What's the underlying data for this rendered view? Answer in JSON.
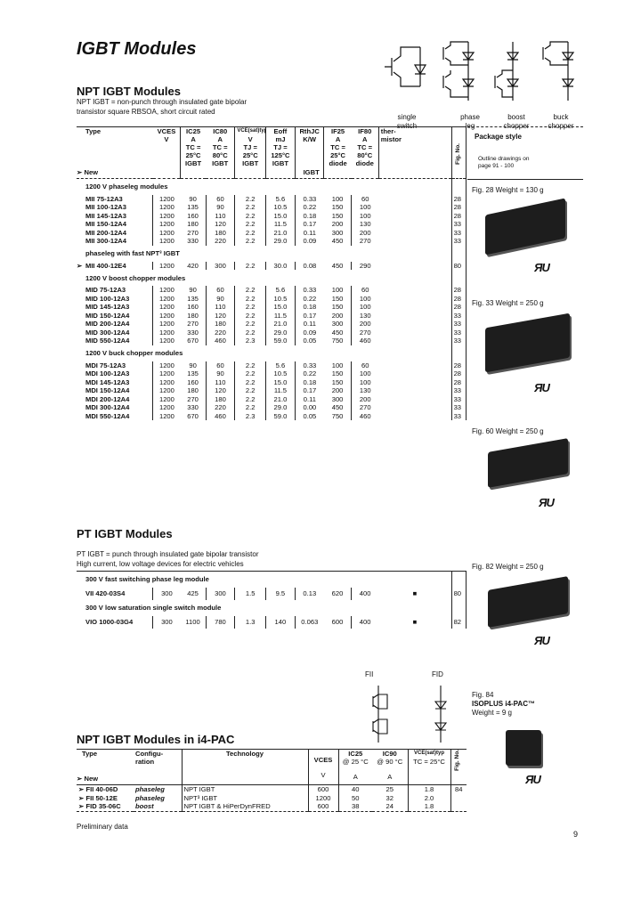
{
  "title": "IGBT Modules",
  "symbols": [
    {
      "label1": "single",
      "label2": "switch"
    },
    {
      "label1": "phase",
      "label2": "leg"
    },
    {
      "label1": "boost",
      "label2": "chopper"
    },
    {
      "label1": "buck",
      "label2": "chopper"
    }
  ],
  "npt": {
    "heading": "NPT IGBT Modules",
    "desc1": "NPT IGBT = non-punch through insulated gate bipolar",
    "desc2": "transistor square RBSOA, short circuit rated",
    "headers": {
      "type": "Type",
      "new": "➢ New",
      "vces": "VCES",
      "vces_u": "V",
      "ic25": "IC25",
      "ic25_u": "A",
      "ic25_c": "TC =",
      "ic25_t": "25°C",
      "ic25_d": "IGBT",
      "ic80": "IC80",
      "ic80_u": "A",
      "ic80_c": "TC =",
      "ic80_t": "80°C",
      "ic80_d": "IGBT",
      "vce": "VCE(sat)typ",
      "vce_u": "V",
      "vce_c": "TJ =",
      "vce_t": "25°C",
      "vce_d": "IGBT",
      "eoff": "Eoff",
      "eoff_u": "mJ",
      "eoff_c": "TJ =",
      "eoff_t": "125°C",
      "eoff_d": "IGBT",
      "rth": "RthJC",
      "rth_u": "K/W",
      "rth_d": "IGBT",
      "if25": "IF25",
      "if25_u": "A",
      "if25_c": "TC =",
      "if25_t": "25°C",
      "if25_d": "diode",
      "if80": "IF80",
      "if80_u": "A",
      "if80_c": "TC =",
      "if80_t": "80°C",
      "if80_d": "diode",
      "therm": "ther-",
      "therm2": "mistor",
      "fig": "Fig. No."
    },
    "sections": [
      {
        "title": "1200 V phaseleg modules",
        "rows": [
          [
            "",
            "MII 75-12A3",
            "1200",
            "90",
            "60",
            "2.2",
            "5.6",
            "0.33",
            "100",
            "60",
            "",
            "28"
          ],
          [
            "",
            "MII 100-12A3",
            "1200",
            "135",
            "90",
            "2.2",
            "10.5",
            "0.22",
            "150",
            "100",
            "",
            "28"
          ],
          [
            "",
            "MII 145-12A3",
            "1200",
            "160",
            "110",
            "2.2",
            "15.0",
            "0.18",
            "150",
            "100",
            "",
            "28"
          ],
          [
            "",
            "MII 150-12A4",
            "1200",
            "180",
            "120",
            "2.2",
            "11.5",
            "0.17",
            "200",
            "130",
            "",
            "33"
          ],
          [
            "",
            "MII 200-12A4",
            "1200",
            "270",
            "180",
            "2.2",
            "21.0",
            "0.11",
            "300",
            "200",
            "",
            "33"
          ],
          [
            "",
            "MII 300-12A4",
            "1200",
            "330",
            "220",
            "2.2",
            "29.0",
            "0.09",
            "450",
            "270",
            "",
            "33"
          ]
        ]
      },
      {
        "title": "phaseleg with fast NPT³ IGBT",
        "rows": [
          [
            "➢",
            "MII 400-12E4",
            "1200",
            "420",
            "300",
            "2.2",
            "30.0",
            "0.08",
            "450",
            "290",
            "",
            "80"
          ]
        ]
      },
      {
        "title": "1200 V boost chopper modules",
        "rows": [
          [
            "",
            "MID 75-12A3",
            "1200",
            "90",
            "60",
            "2.2",
            "5.6",
            "0.33",
            "100",
            "60",
            "",
            "28"
          ],
          [
            "",
            "MID 100-12A3",
            "1200",
            "135",
            "90",
            "2.2",
            "10.5",
            "0.22",
            "150",
            "100",
            "",
            "28"
          ],
          [
            "",
            "MID 145-12A3",
            "1200",
            "160",
            "110",
            "2.2",
            "15.0",
            "0.18",
            "150",
            "100",
            "",
            "28"
          ],
          [
            "",
            "MID 150-12A4",
            "1200",
            "180",
            "120",
            "2.2",
            "11.5",
            "0.17",
            "200",
            "130",
            "",
            "33"
          ],
          [
            "",
            "MID 200-12A4",
            "1200",
            "270",
            "180",
            "2.2",
            "21.0",
            "0.11",
            "300",
            "200",
            "",
            "33"
          ],
          [
            "",
            "MID 300-12A4",
            "1200",
            "330",
            "220",
            "2.2",
            "29.0",
            "0.09",
            "450",
            "270",
            "",
            "33"
          ],
          [
            "",
            "MID 550-12A4",
            "1200",
            "670",
            "460",
            "2.3",
            "59.0",
            "0.05",
            "750",
            "460",
            "",
            "33"
          ]
        ]
      },
      {
        "title": "1200 V buck chopper modules",
        "rows": [
          [
            "",
            "MDI 75-12A3",
            "1200",
            "90",
            "60",
            "2.2",
            "5.6",
            "0.33",
            "100",
            "60",
            "",
            "28"
          ],
          [
            "",
            "MDI 100-12A3",
            "1200",
            "135",
            "90",
            "2.2",
            "10.5",
            "0.22",
            "150",
            "100",
            "",
            "28"
          ],
          [
            "",
            "MDI 145-12A3",
            "1200",
            "160",
            "110",
            "2.2",
            "15.0",
            "0.18",
            "150",
            "100",
            "",
            "28"
          ],
          [
            "",
            "MDI 150-12A4",
            "1200",
            "180",
            "120",
            "2.2",
            "11.5",
            "0.17",
            "200",
            "130",
            "",
            "33"
          ],
          [
            "",
            "MDI 200-12A4",
            "1200",
            "270",
            "180",
            "2.2",
            "21.0",
            "0.11",
            "300",
            "200",
            "",
            "33"
          ],
          [
            "",
            "MDI 300-12A4",
            "1200",
            "330",
            "220",
            "2.2",
            "29.0",
            "0.00",
            "450",
            "270",
            "",
            "33"
          ],
          [
            "",
            "MDI 550-12A4",
            "1200",
            "670",
            "460",
            "2.3",
            "59.0",
            "0.05",
            "750",
            "460",
            "",
            "33"
          ]
        ]
      }
    ]
  },
  "package": {
    "header": "Package style",
    "outline1": "Outline drawings on",
    "outline2": "page 91 - 100",
    "fig28": "Fig. 28 Weight = 130 g",
    "fig33": "Fig. 33 Weight = 250 g",
    "fig60": "Fig. 60 Weight = 250 g",
    "fig82": "Fig. 82 Weight = 250 g",
    "fig84": "Fig. 84",
    "fig84_name": "ISOPLUS i4-PAC™",
    "fig84_weight": "Weight = 9 g"
  },
  "pt": {
    "heading": "PT IGBT Modules",
    "desc1": "PT IGBT = punch through insulated gate bipolar transistor",
    "desc2": "High current, low voltage devices for electric vehicles",
    "sections": [
      {
        "title": "300 V fast switching phase leg module",
        "rows": [
          [
            "",
            "VII 420-03S4",
            "300",
            "425",
            "300",
            "1.5",
            "9.5",
            "0.13",
            "620",
            "400",
            "■",
            "80"
          ]
        ]
      },
      {
        "title": "300 V low saturation single switch module",
        "rows": [
          [
            "",
            "VIO 1000-03G4",
            "300",
            "1100",
            "780",
            "1.3",
            "140",
            "0.063",
            "600",
            "400",
            "■",
            "82"
          ]
        ]
      }
    ]
  },
  "i4pac": {
    "heading": "NPT IGBT Modules in i4-PAC",
    "fii_label": "FII",
    "fid_label": "FID",
    "headers": {
      "type": "Type",
      "new": "➢ New",
      "config": "Configu-",
      "config2": "ration",
      "tech": "Technology",
      "vces": "VCES",
      "vces_u": "V",
      "ic25": "IC25",
      "ic25_c": "@ 25 °C",
      "ic25_u": "A",
      "ic90": "IC90",
      "ic90_c": "@ 90 °C",
      "ic90_u": "A",
      "vce": "VCE(sat)typ",
      "vce_c": "TC = 25°C",
      "fig": "Fig. No."
    },
    "rows": [
      [
        "➢ FII 40-06D",
        "phaseleg",
        "NPT IGBT",
        "600",
        "40",
        "25",
        "1.8",
        "84"
      ],
      [
        "➢ FII 50-12E",
        "phaseleg",
        "NPT³ IGBT",
        "1200",
        "50",
        "32",
        "2.0",
        ""
      ],
      [
        "➢ FID 35-06C",
        "boost",
        "NPT IGBT & HiPerDynFRED",
        "600",
        "38",
        "24",
        "1.8",
        ""
      ]
    ],
    "footnote": "Preliminary data"
  },
  "page_number": "9"
}
